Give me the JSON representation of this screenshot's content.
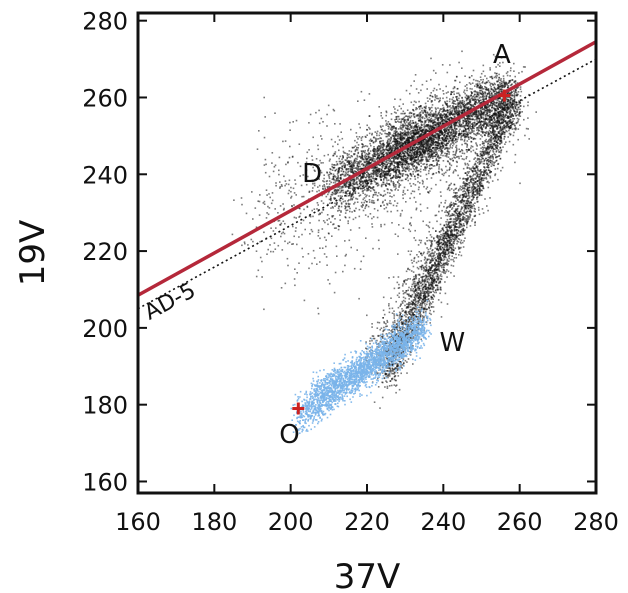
{
  "chart_data": {
    "type": "scatter",
    "xlabel": "37V",
    "ylabel": "19V",
    "xlim": [
      160,
      280
    ],
    "ylim": [
      157,
      282
    ],
    "xticks": [
      160,
      180,
      200,
      220,
      240,
      260,
      280
    ],
    "yticks": [
      160,
      180,
      200,
      220,
      240,
      260,
      280
    ],
    "grid": false,
    "series": [
      {
        "color": "#111111",
        "clusters": [
          {
            "from": [
              210,
              236
            ],
            "to": [
              258,
              260
            ],
            "spread": 4.5,
            "count": 2400
          },
          {
            "from": [
              226,
              248
            ],
            "to": [
              258,
              261
            ],
            "spread": 3.5,
            "count": 1600
          },
          {
            "from": [
              214,
              240
            ],
            "to": [
              240,
              250
            ],
            "spread": 3,
            "count": 900
          },
          {
            "from": [
              225,
              188
            ],
            "to": [
              258,
              259
            ],
            "spread": 2.6,
            "count": 2400
          },
          {
            "from": [
              222,
              192
            ],
            "to": [
              246,
              235
            ],
            "spread": 3.5,
            "count": 700
          },
          {
            "from": [
              192,
              228
            ],
            "to": [
              252,
              252
            ],
            "spread": 10,
            "count": 900
          }
        ]
      },
      {
        "color": "#7ab4ea",
        "clusters": [
          {
            "from": [
              202,
              177
            ],
            "to": [
              235,
              201
            ],
            "spread": 2.3,
            "count": 1700
          },
          {
            "from": [
              206,
              183
            ],
            "to": [
              232,
              197
            ],
            "spread": 2.2,
            "count": 800
          }
        ]
      }
    ],
    "lines": [
      {
        "color": "#b5283a",
        "style": "solid",
        "points": [
          [
            160,
            208.5
          ],
          [
            280,
            274.5
          ]
        ]
      },
      {
        "color": "#111111",
        "style": "dotted",
        "points": [
          [
            160,
            205
          ],
          [
            280,
            270
          ]
        ]
      }
    ],
    "markers": [
      {
        "x": 202,
        "y": 179,
        "color": "#cc2222"
      },
      {
        "x": 256,
        "y": 260.5,
        "color": "#cc2222"
      }
    ],
    "annotations": [
      {
        "text": "A",
        "x": 253,
        "y": 269
      },
      {
        "text": "D",
        "x": 203,
        "y": 238
      },
      {
        "text": "W",
        "x": 239,
        "y": 194
      },
      {
        "text": "O",
        "x": 197,
        "y": 170
      },
      {
        "text": "AD-5",
        "x": 163,
        "y": 202,
        "rotate": -28
      }
    ]
  }
}
